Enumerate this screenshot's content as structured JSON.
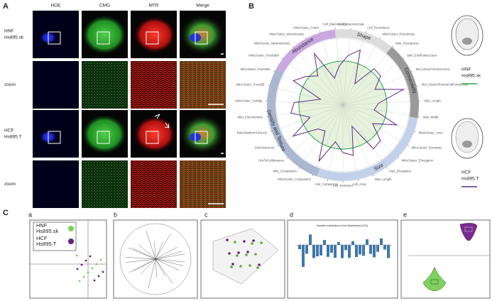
{
  "panels": {
    "A": {
      "label": "A",
      "columns": [
        "HOE",
        "CMG",
        "MTR",
        "Merge"
      ],
      "rows": [
        [
          "HNF",
          "Hs895.sk"
        ],
        [
          "zoom"
        ],
        [
          "HCF",
          "Hs895.T"
        ],
        [
          "zoom"
        ]
      ]
    },
    "B": {
      "label": "B",
      "categories": [
        "Abundance",
        "Shape",
        "Connectivity",
        "Size",
        "Density and Texture"
      ],
      "features": [
        "Cell_MeanIntensity",
        "Cell_Roundness",
        "MitoCluster_Roundness",
        "Mito_Roundness",
        "Skel_EndPointsCount",
        "Skel_BranchPointsCount",
        "Skel_BranchPointsEndPointsRatio",
        "Skel_Length",
        "Skel_Width",
        "MitoCluster_Area",
        "MitoCluster_Perimeter",
        "MitoCluster_Elongation",
        "Mito_Elongation",
        "Mito_Length",
        "Cell_Area",
        "Cell_Perimeter",
        "Cell_Compaction",
        "MitoCluster_Compaction",
        "Mito_Compaction",
        "DistToCellMeasure",
        "DistToNucleus",
        "RatioDistMomToNucl1",
        "Mito_EulerNumber",
        "MitoCluster_Solidity",
        "MitoCluster_FractalB",
        "MitoCluster_Fractal32",
        "MitoCluster_FractalB4",
        "MitoCluster_MeanIntensity",
        "MitoCluster_MaxIntensity",
        "MitoCluster_Count",
        "Cell_MaxIntensity"
      ],
      "legend": [
        [
          "HNF",
          "Hs895.sk"
        ],
        [
          "HCF",
          "Hs895.T"
        ]
      ]
    },
    "C": {
      "label": "C",
      "subpanels": [
        "a",
        "b",
        "c",
        "d",
        "e"
      ],
      "legend": [
        [
          "HNF",
          "Hs895.sk"
        ],
        [
          "HCF",
          "Hs895.T"
        ]
      ],
      "d_title": "Variable contribution to the discriminant (LD1)"
    }
  }
}
